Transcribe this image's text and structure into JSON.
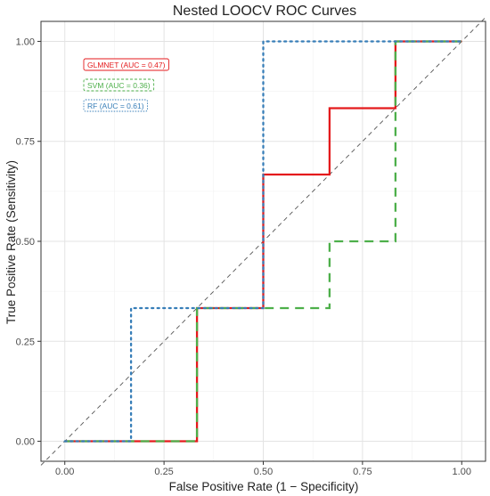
{
  "chart_data": {
    "type": "line",
    "title": "Nested LOOCV ROC Curves",
    "xlabel": "False Positive Rate (1 − Specificity)",
    "ylabel": "True Positive Rate (Sensitivity)",
    "xlim": [
      -0.06,
      1.06
    ],
    "ylim": [
      -0.05,
      1.05
    ],
    "x_ticks": [
      0,
      0.25,
      0.5,
      0.75,
      1
    ],
    "x_tick_labels": [
      "0.00",
      "0.25",
      "0.50",
      "0.75",
      "1.00"
    ],
    "y_ticks": [
      0,
      0.25,
      0.5,
      0.75,
      1
    ],
    "y_tick_labels": [
      "0.00",
      "0.25",
      "0.50",
      "0.75",
      "1.00"
    ],
    "grid": true,
    "legend_position": "top-left (inside plot)",
    "reference_line": {
      "x": [
        0,
        1
      ],
      "y": [
        0,
        1
      ],
      "style": "dashed",
      "color": "#555555"
    },
    "series": [
      {
        "name": "GLMNET (AUC = 0.47)",
        "color": "#E41A1C",
        "style": "solid",
        "x": [
          0,
          0.333,
          0.333,
          0.5,
          0.5,
          0.667,
          0.667,
          0.833,
          0.833,
          1.0
        ],
        "y": [
          0,
          0,
          0.333,
          0.333,
          0.667,
          0.667,
          0.833,
          0.833,
          1.0,
          1.0
        ]
      },
      {
        "name": "SVM (AUC = 0.36)",
        "color": "#4DAF4A",
        "style": "dashed",
        "x": [
          0,
          0.333,
          0.333,
          0.667,
          0.667,
          0.833,
          0.833,
          1.0
        ],
        "y": [
          0,
          0,
          0.333,
          0.333,
          0.5,
          0.5,
          1.0,
          1.0
        ]
      },
      {
        "name": "RF (AUC = 0.61)",
        "color": "#377EB8",
        "style": "dotted",
        "x": [
          0,
          0.167,
          0.167,
          0.5,
          0.5,
          1.0
        ],
        "y": [
          0,
          0,
          0.333,
          0.333,
          1.0,
          1.0
        ]
      }
    ]
  }
}
